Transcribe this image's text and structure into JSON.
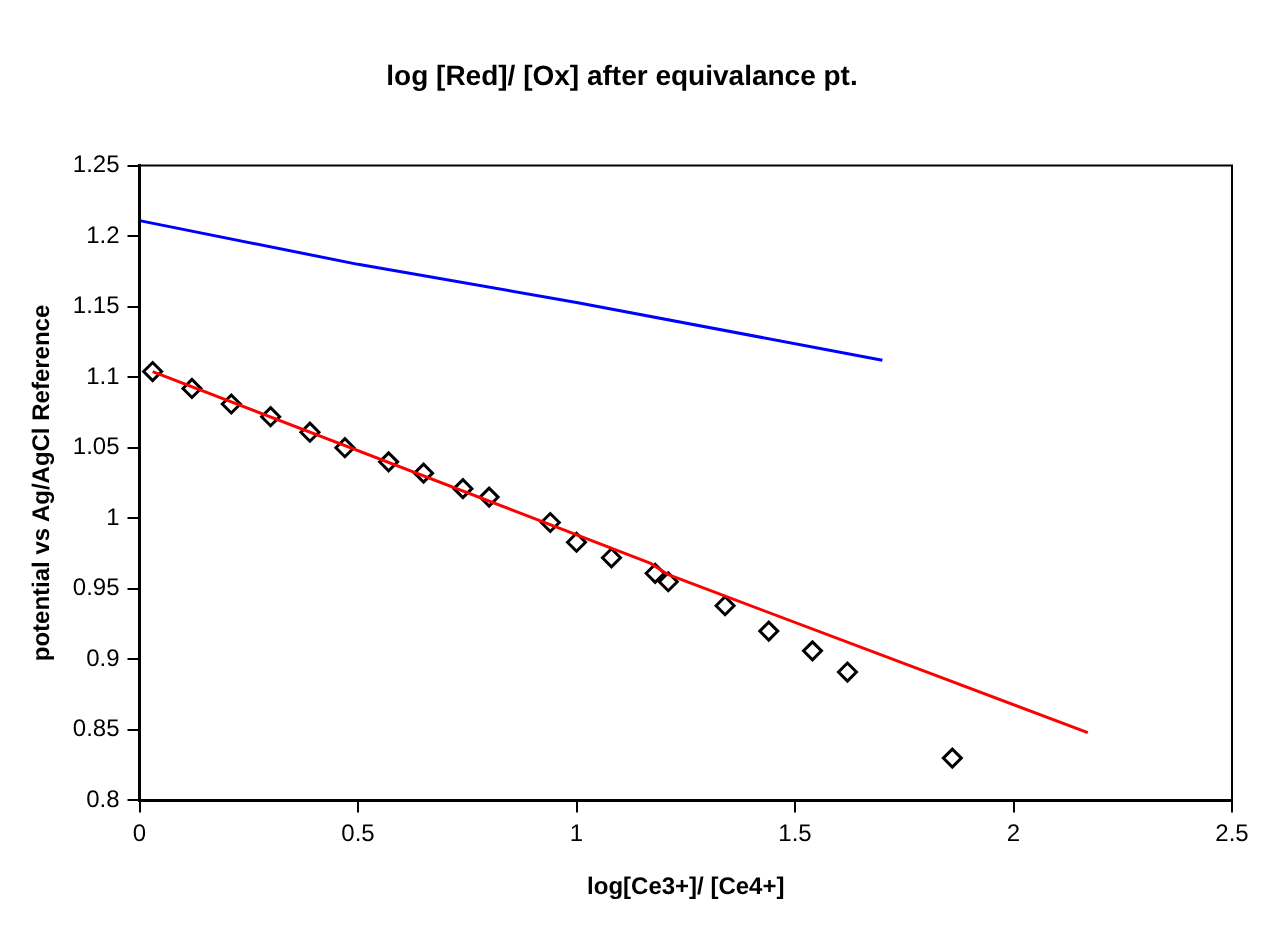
{
  "chart_data": {
    "type": "scatter",
    "title": "log [Red]/ [Ox] after equivalance pt.",
    "xlabel": "log[Ce3+]/ [Ce4+]",
    "ylabel": "potential vs Ag/AgCl Reference",
    "xlim": [
      0,
      2.5
    ],
    "xticks": [
      0,
      0.5,
      1,
      1.5,
      2,
      2.5
    ],
    "ylim": [
      0.8,
      1.25
    ],
    "yticks": [
      0.8,
      0.85,
      0.9,
      0.95,
      1,
      1.05,
      1.1,
      1.15,
      1.2,
      1.25
    ],
    "grid": false,
    "legend": false,
    "series": [
      {
        "type": "line",
        "color": "#0000ff",
        "marker": "none",
        "x": [
          0,
          0.5,
          1,
          1.7
        ],
        "values": [
          1.211,
          1.18,
          1.153,
          1.112
        ]
      },
      {
        "type": "line",
        "color": "#ff0000",
        "marker": "none",
        "x": [
          0.03,
          1.17,
          1.21,
          2.17
        ],
        "values": [
          1.104,
          0.968,
          0.96,
          0.848
        ]
      },
      {
        "color": "#000000",
        "marker": "diamond",
        "x": [
          0.03,
          0.12,
          0.21,
          0.3,
          0.39,
          0.47,
          0.57,
          0.65,
          0.74,
          0.8,
          0.94,
          1.0,
          1.08,
          1.18,
          1.21,
          1.34,
          1.44,
          1.54,
          1.62,
          1.86
        ],
        "values": [
          1.104,
          1.092,
          1.081,
          1.072,
          1.061,
          1.05,
          1.04,
          1.032,
          1.021,
          1.015,
          0.997,
          0.983,
          0.972,
          0.961,
          0.955,
          0.938,
          0.92,
          0.906,
          0.891,
          0.83
        ]
      }
    ]
  }
}
